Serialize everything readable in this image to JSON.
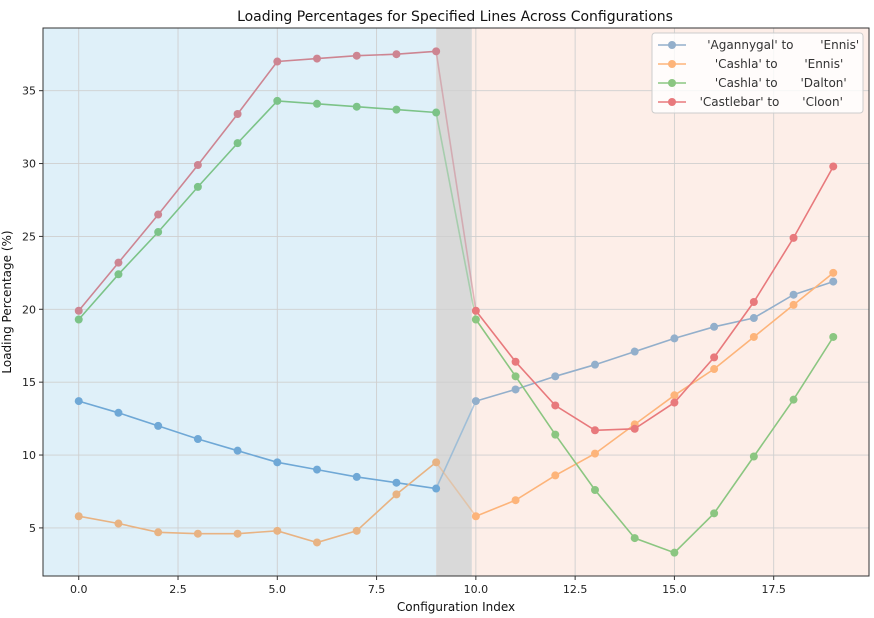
{
  "chart_data": {
    "type": "line",
    "title": "Loading Percentages for Specified Lines Across Configurations",
    "xlabel": "Configuration Index",
    "ylabel": "Loading Percentage (%)",
    "xlim": [
      -0.9,
      19.9
    ],
    "ylim": [
      1.7,
      39.3
    ],
    "xticks": [
      0.0,
      2.5,
      5.0,
      7.5,
      10.0,
      12.5,
      15.0,
      17.5
    ],
    "xtick_labels": [
      "0.0",
      "2.5",
      "5.0",
      "7.5",
      "10.0",
      "12.5",
      "15.0",
      "17.5"
    ],
    "yticks": [
      5,
      10,
      15,
      20,
      25,
      30,
      35
    ],
    "ytick_labels": [
      "5",
      "10",
      "15",
      "20",
      "25",
      "30",
      "35"
    ],
    "grid": true,
    "legend_position": "top-right",
    "regions": [
      {
        "x0": -0.9,
        "x1": 9,
        "color": "#dff0f9"
      },
      {
        "x0": 9,
        "x1": 9.9,
        "color": "#d9d9d9"
      },
      {
        "x0": 9.9,
        "x1": 19.9,
        "color": "#fdeee8"
      }
    ],
    "x": [
      0,
      1,
      2,
      3,
      4,
      5,
      6,
      7,
      8,
      9,
      10,
      11,
      12,
      13,
      14,
      15,
      16,
      17,
      18,
      19
    ],
    "series": [
      {
        "name": "    'Agannygal' to       'Ennis'",
        "color": "#6fa8d6",
        "color_after": "#93afcb",
        "values": [
          13.7,
          12.9,
          12.0,
          11.1,
          10.3,
          9.5,
          9.0,
          8.5,
          8.1,
          7.7,
          13.7,
          14.5,
          15.4,
          16.2,
          17.1,
          18.0,
          18.8,
          19.4,
          21.0,
          21.9
        ]
      },
      {
        "name": "      'Cashla' to       'Ennis'",
        "color": "#e8b383",
        "color_after": "#fdb47a",
        "values": [
          5.8,
          5.3,
          4.7,
          4.6,
          4.6,
          4.8,
          4.0,
          4.8,
          7.3,
          9.5,
          5.8,
          6.9,
          8.6,
          10.1,
          12.1,
          14.1,
          15.9,
          18.1,
          20.3,
          22.5
        ]
      },
      {
        "name": "      'Cashla' to      'Dalton'",
        "color": "#7cc388",
        "color_after": "#8bc681",
        "values": [
          19.3,
          22.4,
          25.3,
          28.4,
          31.4,
          34.3,
          34.1,
          33.9,
          33.7,
          33.5,
          19.3,
          15.4,
          11.4,
          7.6,
          4.3,
          3.3,
          6.0,
          9.9,
          13.8,
          18.1
        ]
      },
      {
        "name": "  'Castlebar' to      'Cloon'",
        "color": "#cd8592",
        "color_after": "#e8797c",
        "values": [
          19.9,
          23.2,
          26.5,
          29.9,
          33.4,
          37.0,
          37.2,
          37.4,
          37.5,
          37.7,
          19.9,
          16.4,
          13.4,
          11.7,
          11.8,
          13.6,
          16.7,
          20.5,
          24.9,
          29.8
        ]
      }
    ]
  }
}
